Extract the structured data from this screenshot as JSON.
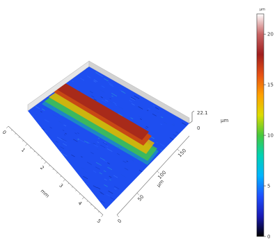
{
  "chart_data": {
    "type": "heatmap",
    "surface": "3d",
    "title": "",
    "x_axis": {
      "label": "mm",
      "ticks": [
        "0",
        "1",
        "2",
        "3",
        "4",
        "5"
      ],
      "range": [
        0,
        5
      ]
    },
    "y_axis": {
      "label": "µm",
      "ticks": [
        "0",
        "50",
        "100",
        "150"
      ],
      "range": [
        0,
        180
      ]
    },
    "z_axis": {
      "ticks": [
        "22.1",
        "0"
      ],
      "unit": "µm",
      "range": [
        0,
        22.1
      ]
    },
    "colorbar": {
      "unit": "µm",
      "ticks": [
        "0",
        "5",
        "10",
        "15",
        "20"
      ],
      "range": [
        0,
        22
      ],
      "colors": [
        "#000000",
        "#1a1ab4",
        "#1e50ff",
        "#00b4ff",
        "#00d2b4",
        "#46c83c",
        "#dcdc00",
        "#ffa000",
        "#e65014",
        "#a01e1e",
        "#c86464",
        "#ffffff"
      ]
    },
    "feature": {
      "kind": "ridge",
      "position_um": 100,
      "height_um": 22.1,
      "base_height_um": 3
    }
  }
}
